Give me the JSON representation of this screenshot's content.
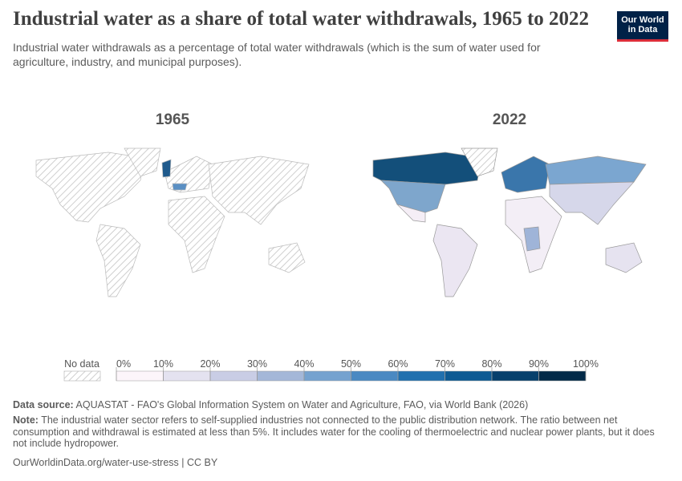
{
  "header": {
    "title": "Industrial water as a share of total water withdrawals, 1965 to 2022",
    "subtitle": "Industrial water withdrawals as a percentage of total water withdrawals (which is the sum of water used for agriculture, industry, and municipal purposes).",
    "logo": [
      "Our World",
      "in Data"
    ]
  },
  "maps": [
    {
      "title": "1965"
    },
    {
      "title": "2022"
    }
  ],
  "legend": {
    "no_data": "No data",
    "ticks": [
      {
        "value": 0,
        "label": "0%"
      },
      {
        "value": 10,
        "label": "10%"
      },
      {
        "value": 20,
        "label": "20%"
      },
      {
        "value": 30,
        "label": "30%"
      },
      {
        "value": 40,
        "label": "40%"
      },
      {
        "value": 50,
        "label": "50%"
      },
      {
        "value": 60,
        "label": "60%"
      },
      {
        "value": 70,
        "label": "70%"
      },
      {
        "value": 80,
        "label": "80%"
      },
      {
        "value": 90,
        "label": "90%"
      },
      {
        "value": 100,
        "label": "100%"
      }
    ],
    "colors": [
      "#fcf5fa",
      "#e4e2f0",
      "#c9cde5",
      "#a4b7d8",
      "#75a2cf",
      "#4a89c2",
      "#2170ae",
      "#0d5a93",
      "#07406c",
      "#032a48"
    ]
  },
  "footer": {
    "source_label": "Data source:",
    "source": "AQUASTAT - FAO's Global Information System on Water and Agriculture, FAO, via World Bank (2026)",
    "note_label": "Note:",
    "note": "The industrial water sector refers to self-supplied industries not connected to the public distribution network. The ratio between net consumption and withdrawal is estimated at less than 5%. It includes water for the cooling of thermoelectric and nuclear power plants, but it does not include hydropower.",
    "url": "OurWorldinData.org/water-use-stress | CC BY"
  }
}
